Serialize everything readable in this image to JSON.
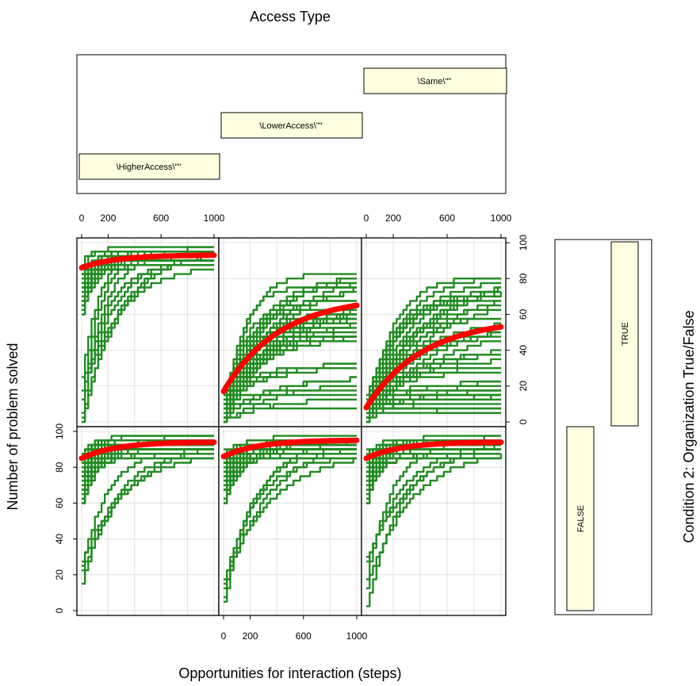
{
  "chart_data": {
    "type": "line",
    "layout": "trellis 3 columns x 2 rows",
    "top_key": {
      "title": "Access Type",
      "levels": [
        "\\HigherAccess\\\"\"",
        "\\LowerAccess\\\"\"",
        "\\Same\\\"\""
      ]
    },
    "right_key": {
      "title": "Condition 2: Organization True/False",
      "levels": [
        "FALSE",
        "TRUE"
      ]
    },
    "xlabel": "Opportunities for interaction (steps)",
    "ylabel": "Number of problem solved",
    "xlim": [
      0,
      1000
    ],
    "ylim": [
      0,
      100
    ],
    "x_ticks": [
      "0",
      "200",
      "600",
      "1000"
    ],
    "x_tick_values": [
      0,
      200,
      600,
      1000
    ],
    "y_ticks": [
      "0",
      "20",
      "40",
      "60",
      "80",
      "100"
    ],
    "y_tick_values": [
      0,
      20,
      40,
      60,
      80,
      100
    ],
    "grid": true,
    "colors": {
      "runs": "#228B22",
      "mean": "#FF0000",
      "strip": "#FFFFE0"
    },
    "panels": [
      {
        "access": "\\HigherAccess\\\"\"",
        "organization": "TRUE",
        "mean_start": 86,
        "mean_end": 93
      },
      {
        "access": "\\LowerAccess\\\"\"",
        "organization": "TRUE",
        "mean_start": 17,
        "mean_end": 65
      },
      {
        "access": "\\Same\\\"\"",
        "organization": "TRUE",
        "mean_start": 8,
        "mean_end": 53
      },
      {
        "access": "\\HigherAccess\\\"\"",
        "organization": "FALSE",
        "mean_start": 85,
        "mean_end": 94
      },
      {
        "access": "\\LowerAccess\\\"\"",
        "organization": "FALSE",
        "mean_start": 86,
        "mean_end": 95
      },
      {
        "access": "\\Same\\\"\"",
        "organization": "FALSE",
        "mean_start": 85,
        "mean_end": 94
      }
    ]
  }
}
